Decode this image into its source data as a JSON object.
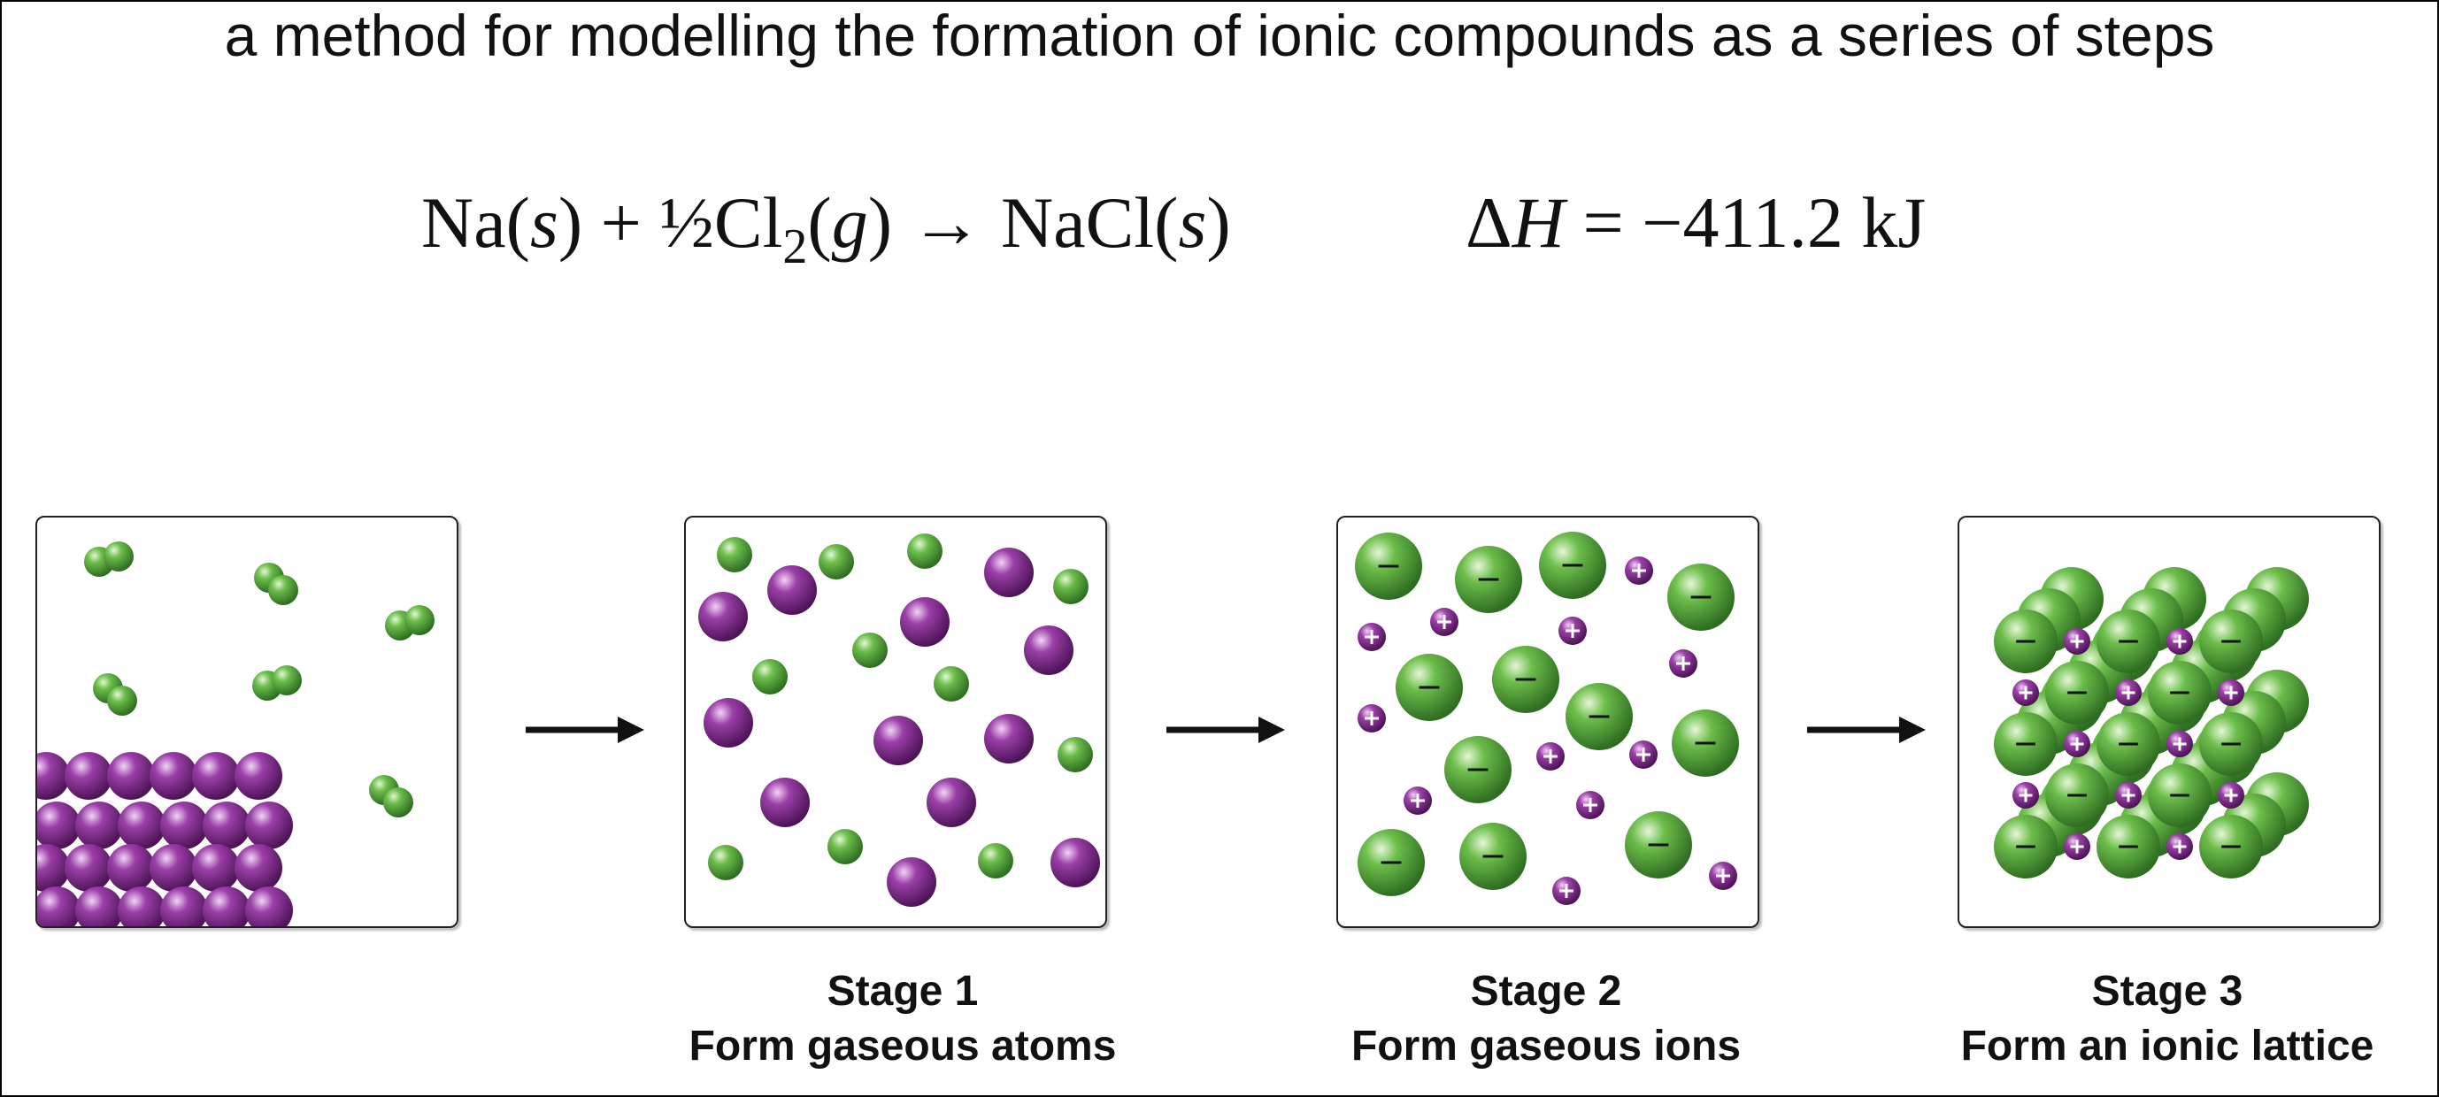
{
  "title": "a method for modelling the formation of ionic compounds as a series of steps",
  "equation": {
    "na": "Na",
    "state_s1": "s",
    "plus": " + ½Cl",
    "sub2": "2",
    "state_g": "g",
    "arrow_product": " → NaCl",
    "state_s2": "s"
  },
  "enthalpy": {
    "symbol": "Δ",
    "h": "H",
    "value": " = −411.2 kJ"
  },
  "stages": [
    {
      "number": "Stage 1",
      "description": "Form gaseous atoms"
    },
    {
      "number": "Stage 2",
      "description": "Form gaseous ions"
    },
    {
      "number": "Stage 3",
      "description": "Form an ionic lattice"
    }
  ],
  "colors": {
    "sodium": "#9b3fa8",
    "chlorine": "#6cbd4a",
    "outline": "#222222"
  },
  "ion_signs": {
    "cation": "+",
    "anion": "−"
  }
}
